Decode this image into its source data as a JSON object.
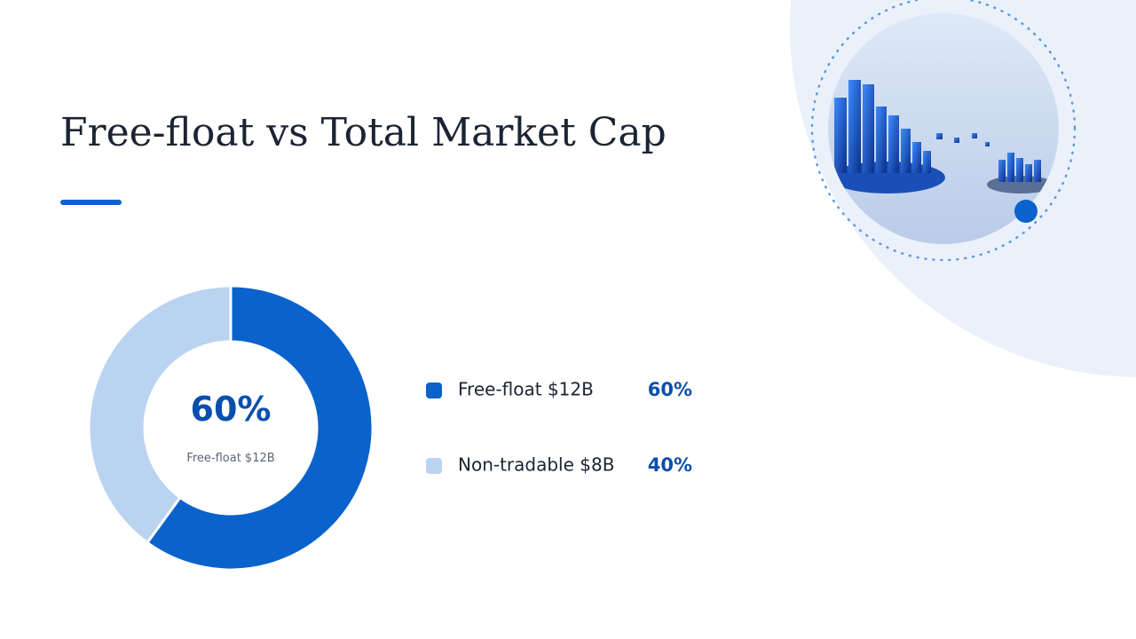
{
  "chart_data": {
    "type": "pie",
    "title": "Free-float vs Total Market Cap",
    "categories": [
      "Free-float $12B",
      "Non-tradable $8B"
    ],
    "values": [
      60,
      40
    ],
    "value_labels": [
      "60%",
      "40%"
    ],
    "colors": [
      "#0a62cc",
      "#b9d3f1"
    ],
    "hole": true
  }
}
